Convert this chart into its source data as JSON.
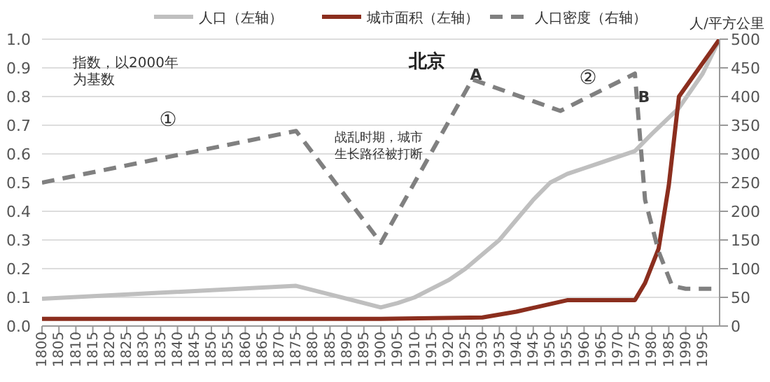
{
  "chart_data": {
    "type": "line",
    "title": "北京",
    "series": [
      {
        "name": "人口（左轴）",
        "color": "#bfbfbf",
        "line_style": "solid",
        "x": [
          1800,
          1875,
          1900,
          1905,
          1910,
          1915,
          1920,
          1925,
          1930,
          1935,
          1940,
          1945,
          1950,
          1955,
          1960,
          1965,
          1970,
          1975,
          1980,
          1988,
          1995,
          2000
        ],
        "values": [
          0.095,
          0.14,
          0.065,
          0.08,
          0.1,
          0.13,
          0.16,
          0.2,
          0.25,
          0.3,
          0.37,
          0.44,
          0.5,
          0.53,
          0.55,
          0.57,
          0.59,
          0.61,
          0.67,
          0.76,
          0.88,
          1.0
        ]
      },
      {
        "name": "城市面积（左轴）",
        "color": "#8b2e1e",
        "line_style": "solid",
        "x": [
          1800,
          1900,
          1930,
          1940,
          1955,
          1975,
          1978,
          1982,
          1985,
          1988,
          2000
        ],
        "values": [
          0.025,
          0.025,
          0.03,
          0.05,
          0.09,
          0.09,
          0.15,
          0.27,
          0.49,
          0.8,
          1.0
        ]
      },
      {
        "name": "人口密度（右轴）",
        "color": "#808080",
        "line_style": "dashed",
        "axis": "y2",
        "x": [
          1800,
          1875,
          1900,
          1927,
          1953,
          1975,
          1978,
          1982,
          1986,
          1990,
          2000
        ],
        "values": [
          250,
          340,
          145,
          430,
          375,
          440,
          220,
          130,
          70,
          65,
          65
        ]
      }
    ],
    "xlim": [
      1800,
      2000
    ],
    "xticks": [
      1800,
      1805,
      1810,
      1815,
      1820,
      1825,
      1830,
      1835,
      1840,
      1845,
      1850,
      1855,
      1860,
      1865,
      1870,
      1875,
      1880,
      1885,
      1890,
      1895,
      1900,
      1905,
      1910,
      1915,
      1920,
      1925,
      1930,
      1935,
      1940,
      1945,
      1950,
      1955,
      1960,
      1965,
      1970,
      1975,
      1980,
      1985,
      1990,
      1995
    ],
    "ylim": [
      0,
      1
    ],
    "yticks": [
      {
        "value": 0,
        "label": "0.0"
      },
      0.1,
      0.2,
      0.3,
      0.4,
      0.5,
      0.6,
      0.7,
      0.8,
      0.9,
      {
        "value": 1,
        "label": "1.0"
      }
    ],
    "y2lim": [
      0,
      500
    ],
    "y2ticks": [
      0,
      50,
      100,
      150,
      200,
      250,
      300,
      350,
      400,
      450,
      500
    ],
    "y2label": "人/平方公里",
    "annotations": [
      "指数，以2000年为基数",
      "①",
      "战乱时期，城市生长路径被打断",
      "A",
      "②",
      "B"
    ],
    "grid": "y",
    "legend": "top"
  }
}
